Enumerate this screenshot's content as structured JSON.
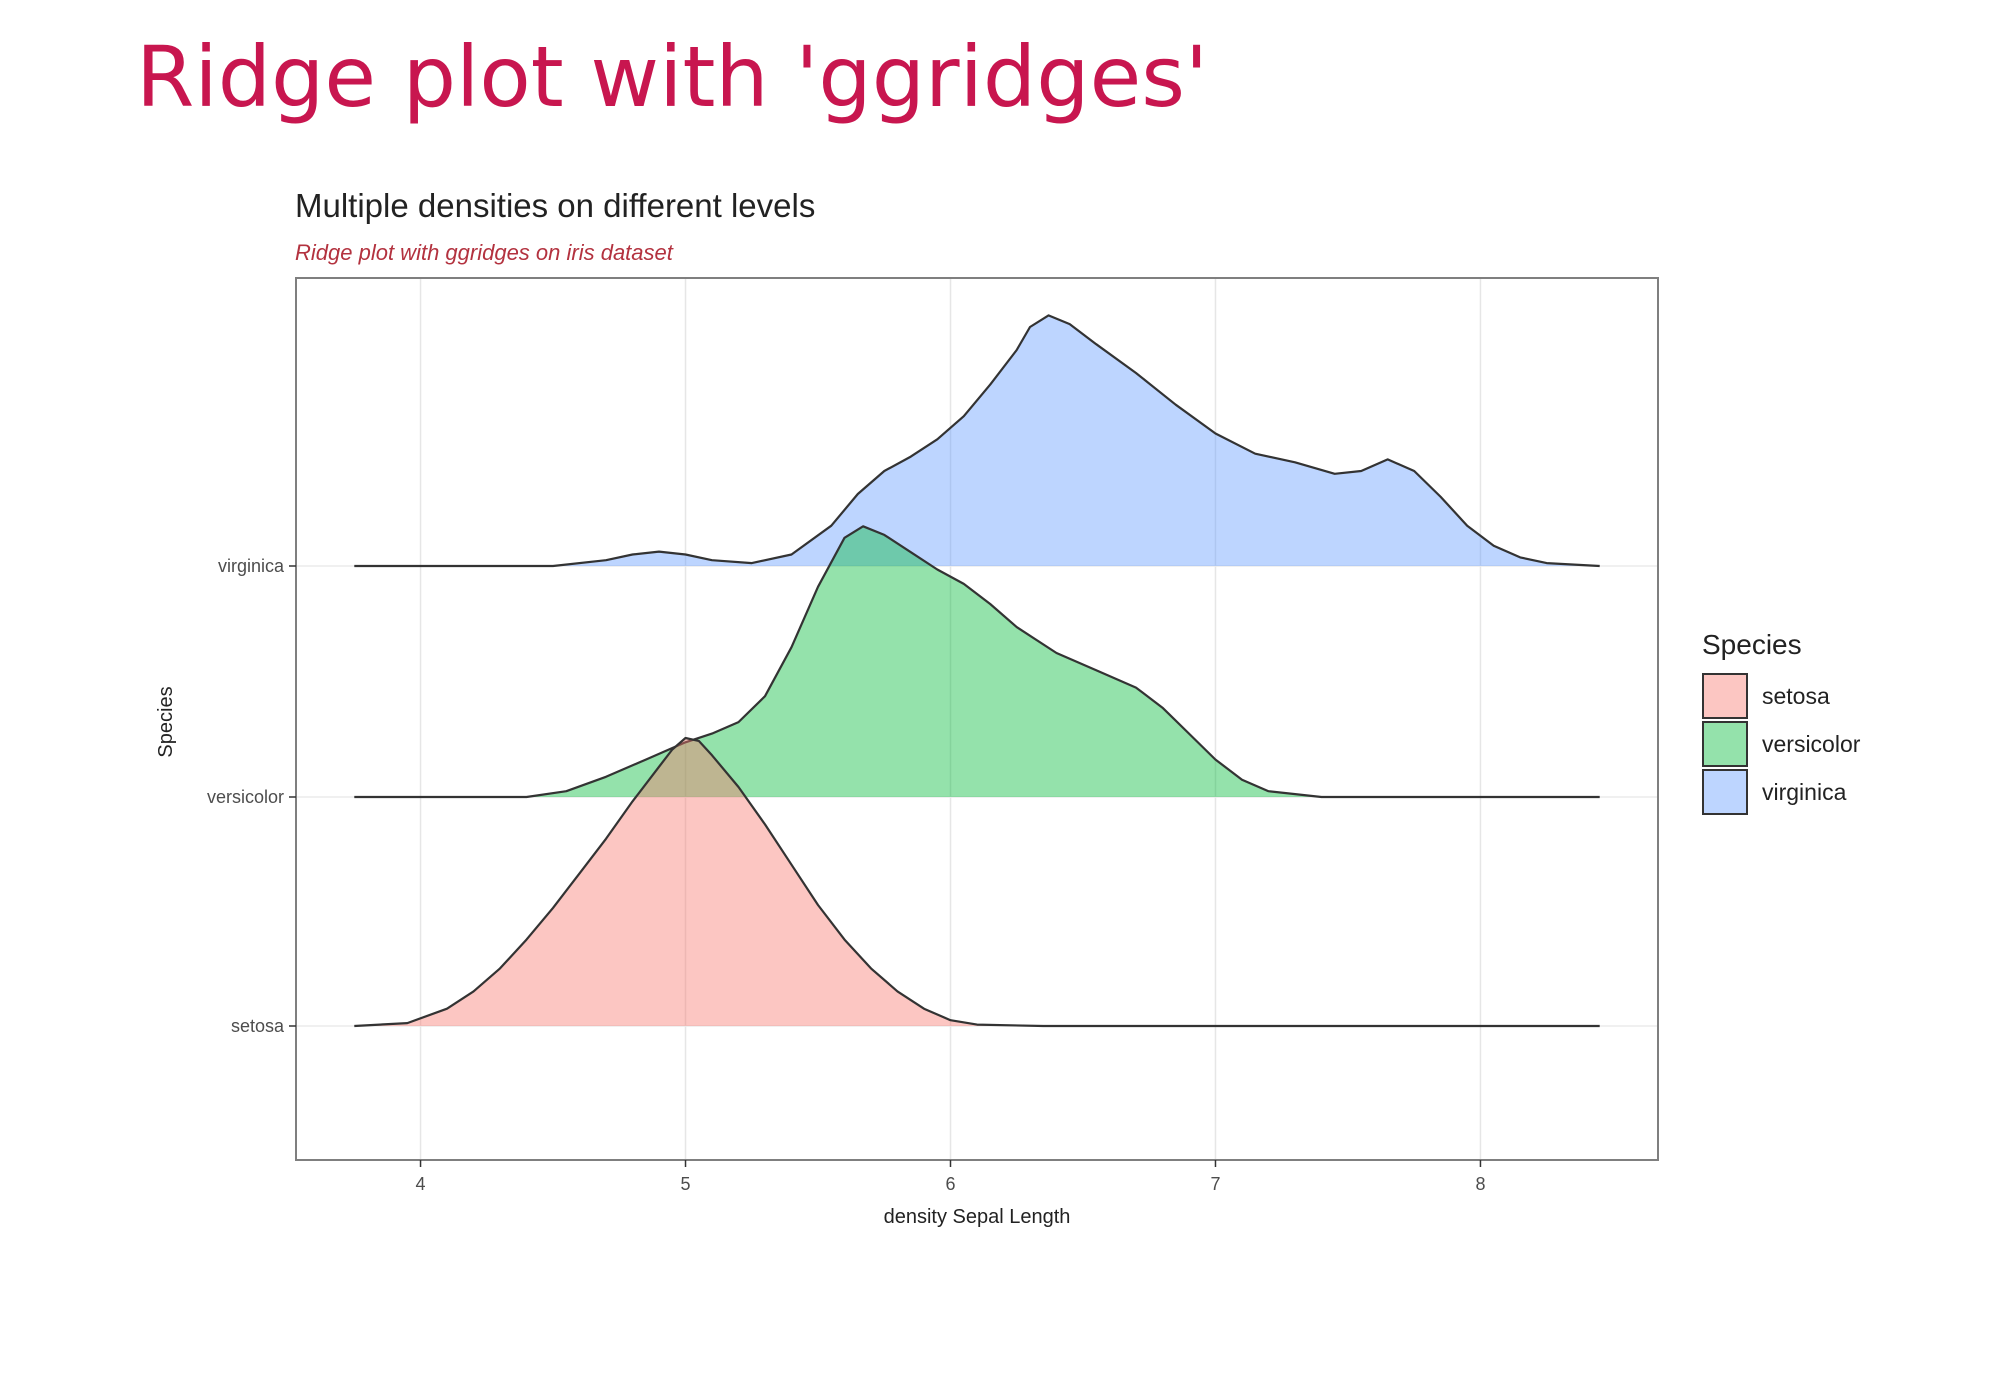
{
  "slide": {
    "title": "Ridge plot with 'ggridges'"
  },
  "colors": {
    "title_accent": "#c8164f",
    "subtitle": "#b3323f",
    "setosa": "#f8766d",
    "versicolor": "#00ba38",
    "virginica": "#619cff",
    "outline": "#333333"
  },
  "chart_data": {
    "type": "ridgeline",
    "title": "Multiple densities on different levels",
    "subtitle": "Ridge plot with ggridges on iris dataset",
    "xlabel": "density Sepal Length",
    "ylabel": "Species",
    "xlim": [
      3.53,
      8.67
    ],
    "x_ticks": [
      4,
      5,
      6,
      7,
      8
    ],
    "categories": [
      "setosa",
      "versicolor",
      "virginica"
    ],
    "grid": true,
    "legend": {
      "title": "Species",
      "position": "right",
      "entries": [
        "setosa",
        "versicolor",
        "virginica"
      ]
    },
    "x_range": [
      3.75,
      8.45
    ],
    "series": [
      {
        "name": "setosa",
        "fill": "#f8766d",
        "points": [
          [
            3.75,
            0
          ],
          [
            3.95,
            0.01
          ],
          [
            4.1,
            0.06
          ],
          [
            4.2,
            0.12
          ],
          [
            4.3,
            0.2
          ],
          [
            4.4,
            0.3
          ],
          [
            4.5,
            0.41
          ],
          [
            4.6,
            0.53
          ],
          [
            4.7,
            0.65
          ],
          [
            4.8,
            0.78
          ],
          [
            4.9,
            0.9
          ],
          [
            4.95,
            0.96
          ],
          [
            5.0,
            1.0
          ],
          [
            5.05,
            0.99
          ],
          [
            5.1,
            0.94
          ],
          [
            5.2,
            0.83
          ],
          [
            5.3,
            0.7
          ],
          [
            5.4,
            0.56
          ],
          [
            5.5,
            0.42
          ],
          [
            5.6,
            0.3
          ],
          [
            5.7,
            0.2
          ],
          [
            5.8,
            0.12
          ],
          [
            5.9,
            0.06
          ],
          [
            6.0,
            0.02
          ],
          [
            6.1,
            0.005
          ],
          [
            6.35,
            0
          ],
          [
            8.45,
            0
          ]
        ]
      },
      {
        "name": "versicolor",
        "fill": "#00ba38",
        "points": [
          [
            3.75,
            0
          ],
          [
            4.4,
            0
          ],
          [
            4.55,
            0.02
          ],
          [
            4.7,
            0.07
          ],
          [
            4.85,
            0.13
          ],
          [
            5.0,
            0.19
          ],
          [
            5.1,
            0.22
          ],
          [
            5.2,
            0.26
          ],
          [
            5.3,
            0.35
          ],
          [
            5.4,
            0.52
          ],
          [
            5.5,
            0.73
          ],
          [
            5.6,
            0.9
          ],
          [
            5.67,
            0.94
          ],
          [
            5.75,
            0.91
          ],
          [
            5.85,
            0.85
          ],
          [
            5.95,
            0.79
          ],
          [
            6.05,
            0.74
          ],
          [
            6.15,
            0.67
          ],
          [
            6.25,
            0.59
          ],
          [
            6.4,
            0.5
          ],
          [
            6.55,
            0.44
          ],
          [
            6.7,
            0.38
          ],
          [
            6.8,
            0.31
          ],
          [
            6.9,
            0.22
          ],
          [
            7.0,
            0.13
          ],
          [
            7.1,
            0.06
          ],
          [
            7.2,
            0.02
          ],
          [
            7.4,
            0
          ],
          [
            8.45,
            0
          ]
        ]
      },
      {
        "name": "virginica",
        "fill": "#619cff",
        "points": [
          [
            3.75,
            0
          ],
          [
            4.5,
            0
          ],
          [
            4.7,
            0.02
          ],
          [
            4.8,
            0.04
          ],
          [
            4.9,
            0.05
          ],
          [
            5.0,
            0.04
          ],
          [
            5.1,
            0.02
          ],
          [
            5.25,
            0.01
          ],
          [
            5.4,
            0.04
          ],
          [
            5.55,
            0.14
          ],
          [
            5.65,
            0.25
          ],
          [
            5.75,
            0.33
          ],
          [
            5.85,
            0.38
          ],
          [
            5.95,
            0.44
          ],
          [
            6.05,
            0.52
          ],
          [
            6.15,
            0.63
          ],
          [
            6.25,
            0.75
          ],
          [
            6.3,
            0.83
          ],
          [
            6.37,
            0.87
          ],
          [
            6.45,
            0.84
          ],
          [
            6.55,
            0.77
          ],
          [
            6.7,
            0.67
          ],
          [
            6.85,
            0.56
          ],
          [
            7.0,
            0.46
          ],
          [
            7.15,
            0.39
          ],
          [
            7.3,
            0.36
          ],
          [
            7.45,
            0.32
          ],
          [
            7.55,
            0.33
          ],
          [
            7.65,
            0.37
          ],
          [
            7.75,
            0.33
          ],
          [
            7.85,
            0.24
          ],
          [
            7.95,
            0.14
          ],
          [
            8.05,
            0.07
          ],
          [
            8.15,
            0.03
          ],
          [
            8.25,
            0.01
          ],
          [
            8.45,
            0
          ]
        ]
      }
    ]
  }
}
